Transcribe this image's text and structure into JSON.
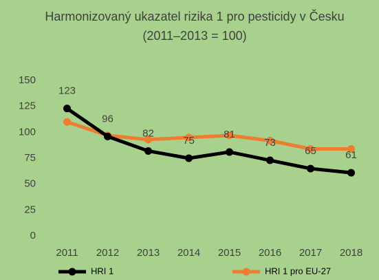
{
  "chart_data": {
    "type": "line",
    "title": "Harmonizovaný ukazatel rizika 1 pro pesticidy v Česku",
    "subtitle": "(2011–2013 = 100)",
    "categories": [
      "2011",
      "2012",
      "2013",
      "2014",
      "2015",
      "2016",
      "2017",
      "2018"
    ],
    "series": [
      {
        "name": "HRI 1",
        "color": "#000000",
        "values": [
          123,
          96,
          82,
          75,
          81,
          73,
          65,
          61
        ],
        "data_labels": true
      },
      {
        "name": "HRI 1 pro EU-27",
        "color": "#ed7d31",
        "values": [
          110,
          97,
          93,
          95,
          97,
          92,
          84,
          84
        ],
        "data_labels": false
      }
    ],
    "ylim": [
      0,
      150
    ],
    "yticks": [
      0,
      25,
      50,
      75,
      100,
      125,
      150
    ],
    "legend": "bottom"
  }
}
